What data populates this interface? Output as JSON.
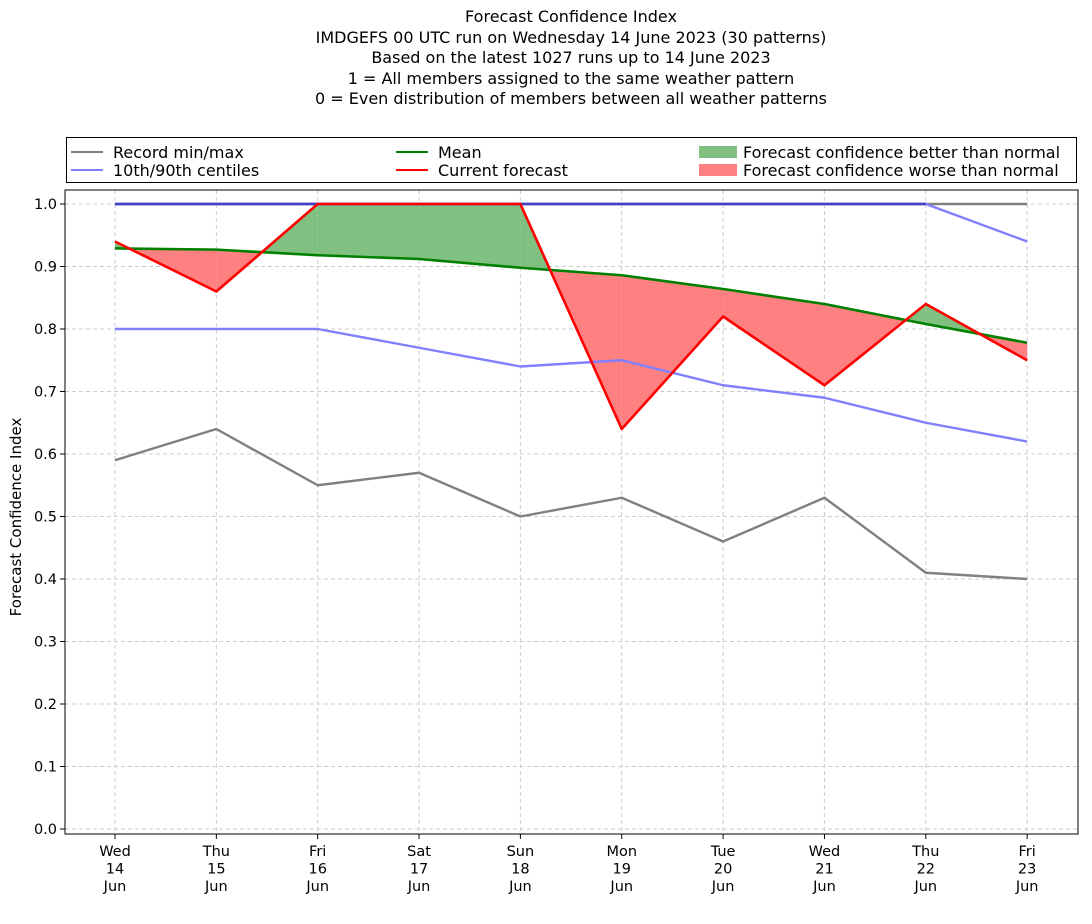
{
  "title_lines": [
    "Forecast Confidence Index",
    "IMDGEFS 00 UTC run on Wednesday 14 June 2023 (30 patterns)",
    "Based on the latest 1027 runs up to 14 June 2023",
    "1 = All members assigned to the same weather pattern",
    "0 = Even distribution of members between all weather patterns"
  ],
  "legend": {
    "record": "Record min/max",
    "centiles": "10th/90th centiles",
    "mean": "Mean",
    "current": "Current forecast",
    "better": "Forecast confidence better than normal",
    "worse": "Forecast confidence worse than normal"
  },
  "colors": {
    "record": "#808080",
    "centiles": "#8080ff",
    "mean": "#008000",
    "current": "#ff0000",
    "better": "#80c080",
    "worse": "#ff8080",
    "overlap": "#4040c0"
  },
  "chart_data": {
    "type": "line",
    "ylabel": "Forecast Confidence Index",
    "ylim": [
      0,
      1
    ],
    "yticks": [
      "0.0",
      "0.1",
      "0.2",
      "0.3",
      "0.4",
      "0.5",
      "0.6",
      "0.7",
      "0.8",
      "0.9",
      "1.0"
    ],
    "grid": true,
    "legend_placement": "top",
    "categories": [
      [
        "Wed",
        "14",
        "Jun"
      ],
      [
        "Thu",
        "15",
        "Jun"
      ],
      [
        "Fri",
        "16",
        "Jun"
      ],
      [
        "Sat",
        "17",
        "Jun"
      ],
      [
        "Sun",
        "18",
        "Jun"
      ],
      [
        "Mon",
        "19",
        "Jun"
      ],
      [
        "Tue",
        "20",
        "Jun"
      ],
      [
        "Wed",
        "21",
        "Jun"
      ],
      [
        "Thu",
        "22",
        "Jun"
      ],
      [
        "Fri",
        "23",
        "Jun"
      ]
    ],
    "series": [
      {
        "name": "Record min/max",
        "key": "record_min",
        "values": [
          0.59,
          0.64,
          0.55,
          0.57,
          0.5,
          0.53,
          0.46,
          0.53,
          0.41,
          0.4
        ]
      },
      {
        "name": "Record min/max",
        "key": "record_max",
        "values": [
          1.0,
          1.0,
          1.0,
          1.0,
          1.0,
          1.0,
          1.0,
          1.0,
          1.0,
          1.0
        ]
      },
      {
        "name": "10th/90th centiles",
        "key": "p10",
        "values": [
          0.8,
          0.8,
          0.8,
          0.77,
          0.74,
          0.75,
          0.71,
          0.69,
          0.65,
          0.62
        ]
      },
      {
        "name": "10th/90th centiles",
        "key": "p90",
        "values": [
          1.0,
          1.0,
          1.0,
          1.0,
          1.0,
          1.0,
          1.0,
          1.0,
          1.0,
          0.94
        ]
      },
      {
        "name": "Mean",
        "key": "mean",
        "values": [
          0.929,
          0.927,
          0.918,
          0.912,
          0.898,
          0.886,
          0.864,
          0.84,
          0.808,
          0.778
        ]
      },
      {
        "name": "Current forecast",
        "key": "current",
        "values": [
          0.94,
          0.86,
          1.0,
          1.0,
          1.0,
          0.64,
          0.82,
          0.71,
          0.84,
          0.75
        ]
      }
    ]
  }
}
